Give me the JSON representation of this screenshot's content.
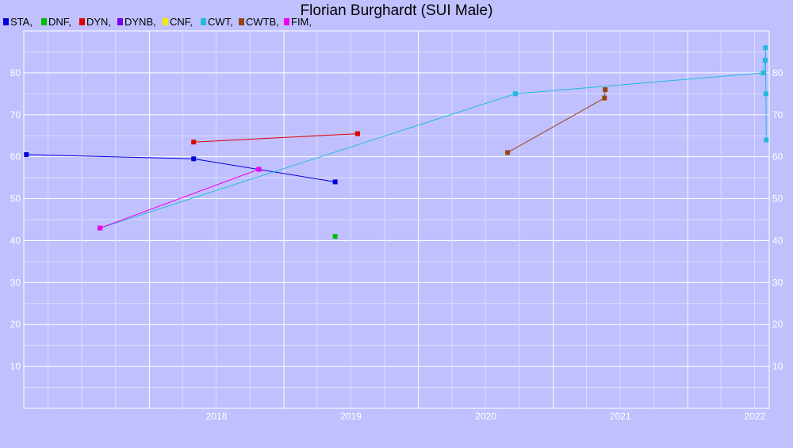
{
  "chart_data": {
    "type": "line",
    "title": "Florian Burghardt (SUI Male)",
    "xlabel": "",
    "ylabel": "",
    "x_ticks": [
      "2018",
      "2019",
      "2020",
      "2021",
      "2022"
    ],
    "y_ticks": [
      10,
      20,
      30,
      40,
      50,
      60,
      70,
      80
    ],
    "xlim": [
      "2017-01-25",
      "2022-08-10"
    ],
    "ylim": [
      0,
      90
    ],
    "grid": true,
    "legend_position": "top-left",
    "series": [
      {
        "name": "STA",
        "color": "#0000dd",
        "points": [
          [
            "2017-02-01",
            60.5
          ],
          [
            "2018-05-01",
            59.5
          ],
          [
            "2019-05-20",
            54
          ]
        ]
      },
      {
        "name": "DNF",
        "color": "#00bb00",
        "points": [
          [
            "2019-05-20",
            41
          ]
        ]
      },
      {
        "name": "DYN",
        "color": "#dd0000",
        "points": [
          [
            "2018-05-01",
            63.5
          ],
          [
            "2019-07-20",
            65.5
          ]
        ]
      },
      {
        "name": "DYNB",
        "color": "#7700ee",
        "points": []
      },
      {
        "name": "CNF",
        "color": "#eeee00",
        "points": []
      },
      {
        "name": "CWT",
        "color": "#22bbdd",
        "points": [
          [
            "2017-08-20",
            43
          ],
          [
            "2020-09-20",
            75
          ],
          [
            "2022-07-25",
            80
          ],
          [
            "2022-07-30",
            83
          ],
          [
            "2022-07-31",
            86
          ],
          [
            "2022-08-01",
            75
          ],
          [
            "2022-08-02",
            64
          ]
        ]
      },
      {
        "name": "CWTB",
        "color": "#994411",
        "points": [
          [
            "2020-08-30",
            61
          ],
          [
            "2021-05-20",
            74
          ],
          [
            "2021-05-22",
            76
          ]
        ]
      },
      {
        "name": "FIM",
        "color": "#ee00ee",
        "points": [
          [
            "2017-08-20",
            43
          ],
          [
            "2018-10-25",
            57
          ]
        ]
      }
    ]
  }
}
